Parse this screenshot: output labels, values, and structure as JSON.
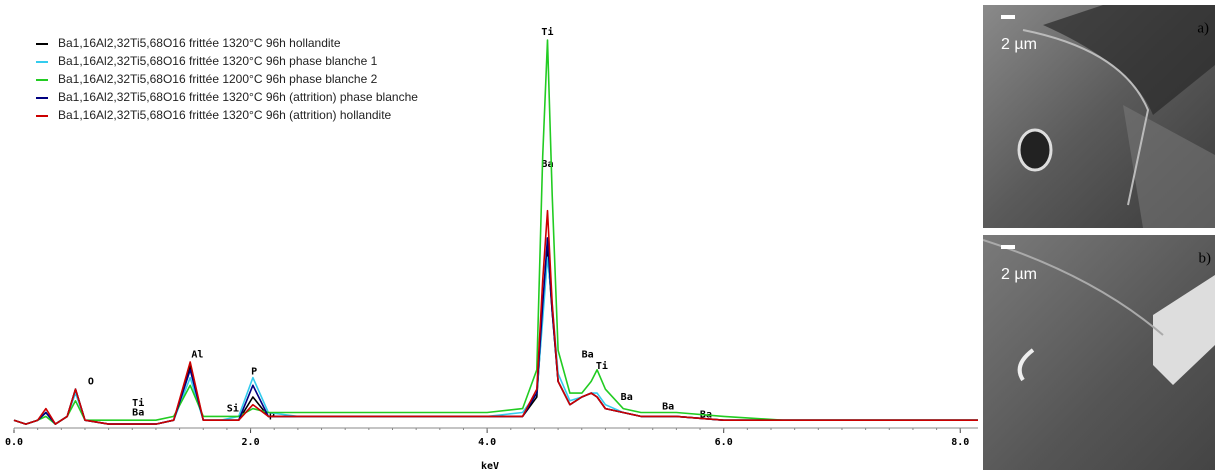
{
  "chart_data": {
    "type": "line",
    "x_label": "keV",
    "x": [
      0.0,
      0.1,
      0.2,
      0.27,
      0.35,
      0.45,
      0.52,
      0.6,
      0.8,
      1.0,
      1.2,
      1.35,
      1.49,
      1.6,
      1.75,
      1.9,
      2.02,
      2.15,
      2.4,
      2.8,
      3.2,
      3.6,
      4.0,
      4.3,
      4.42,
      4.47,
      4.51,
      4.55,
      4.6,
      4.7,
      4.8,
      4.88,
      4.93,
      5.0,
      5.15,
      5.3,
      5.6,
      6.0,
      6.5,
      7.0,
      7.5,
      8.0,
      8.15
    ],
    "series": [
      {
        "name": "Ba1,16Al2,32Ti5,68O16 frittée 1320°C 96h hollandite",
        "color": "#000000",
        "values": [
          2,
          1,
          2,
          4,
          1,
          3,
          10,
          2,
          1,
          1,
          1,
          2,
          16,
          2,
          2,
          2,
          8,
          3,
          3,
          3,
          3,
          3,
          3,
          3,
          8,
          30,
          46,
          30,
          12,
          6,
          8,
          9,
          8,
          5,
          4,
          3,
          3,
          2,
          2,
          2,
          2,
          2,
          2
        ]
      },
      {
        "name": "Ba1,16Al2,32Ti5,68O16 frittée 1320°C 96h phase blanche 1",
        "color": "#33ccee",
        "values": [
          2,
          1,
          2,
          4,
          1,
          3,
          9,
          2,
          1,
          1,
          1,
          2,
          13,
          2,
          2,
          3,
          13,
          4,
          3,
          3,
          3,
          3,
          3,
          4,
          9,
          28,
          44,
          32,
          14,
          7,
          8,
          9,
          9,
          6,
          4,
          3,
          3,
          2,
          2,
          2,
          2,
          2,
          2
        ]
      },
      {
        "name": "Ba1,16Al2,32Ti5,68O16 frittée 1200°C 96h phase blanche 2",
        "color": "#22cc22",
        "values": [
          2,
          1,
          2,
          3,
          1,
          3,
          7,
          2,
          2,
          2,
          2,
          3,
          11,
          3,
          3,
          3,
          5,
          4,
          4,
          4,
          4,
          4,
          4,
          5,
          15,
          70,
          100,
          60,
          20,
          9,
          9,
          12,
          15,
          10,
          5,
          4,
          4,
          3,
          2,
          2,
          2,
          2,
          2
        ]
      },
      {
        "name": "Ba1,16Al2,32Ti5,68O16 frittée 1320°C 96h (attrition) phase blanche",
        "color": "#000080",
        "values": [
          2,
          1,
          2,
          4,
          1,
          3,
          10,
          2,
          1,
          1,
          1,
          2,
          15,
          2,
          2,
          2,
          11,
          3,
          3,
          3,
          3,
          3,
          3,
          3,
          9,
          32,
          49,
          30,
          12,
          6,
          8,
          9,
          8,
          5,
          4,
          3,
          3,
          2,
          2,
          2,
          2,
          2,
          2
        ]
      },
      {
        "name": "Ba1,16Al2,32Ti5,68O16 frittée 1320°C 96h (attrition) hollandite",
        "color": "#cc0000",
        "values": [
          2,
          1,
          2,
          5,
          1,
          3,
          10,
          2,
          1,
          1,
          1,
          2,
          17,
          2,
          2,
          2,
          6,
          3,
          3,
          3,
          3,
          3,
          3,
          3,
          10,
          38,
          56,
          32,
          12,
          6,
          8,
          9,
          8,
          5,
          4,
          3,
          3,
          2,
          2,
          2,
          2,
          2,
          2
        ]
      }
    ],
    "xlim": [
      0,
      8.15
    ],
    "xticks": [
      {
        "value": 0,
        "label": "0.0"
      },
      {
        "value": 2,
        "label": "2.0"
      },
      {
        "value": 4,
        "label": "4.0"
      },
      {
        "value": 6,
        "label": "6.0"
      },
      {
        "value": 8,
        "label": "8.0"
      }
    ],
    "ylim": [
      0,
      100
    ],
    "legend": "top-left",
    "annotations": [
      {
        "text": "Ti",
        "x": 4.51,
        "y": 102
      },
      {
        "text": "Ba",
        "x": 4.51,
        "y": 68
      },
      {
        "text": "Al",
        "x": 1.55,
        "y": 19
      },
      {
        "text": "O",
        "x": 0.65,
        "y": 12
      },
      {
        "text": "Ti",
        "x": 1.05,
        "y": 6.5
      },
      {
        "text": "Ba",
        "x": 1.05,
        "y": 4
      },
      {
        "text": "Si",
        "x": 1.85,
        "y": 5
      },
      {
        "text": "P",
        "x": 2.03,
        "y": 14.5
      },
      {
        "text": "P",
        "x": 2.18,
        "y": 3
      },
      {
        "text": "Ba",
        "x": 4.85,
        "y": 19
      },
      {
        "text": "Ti",
        "x": 4.97,
        "y": 16
      },
      {
        "text": "Ba",
        "x": 5.18,
        "y": 8
      },
      {
        "text": "Ba",
        "x": 5.53,
        "y": 5.5
      },
      {
        "text": "Ba",
        "x": 5.85,
        "y": 3.5
      }
    ]
  },
  "images": [
    {
      "scale": "2 µm",
      "label": "a)"
    },
    {
      "scale": "2 µm",
      "label": "b)"
    }
  ]
}
